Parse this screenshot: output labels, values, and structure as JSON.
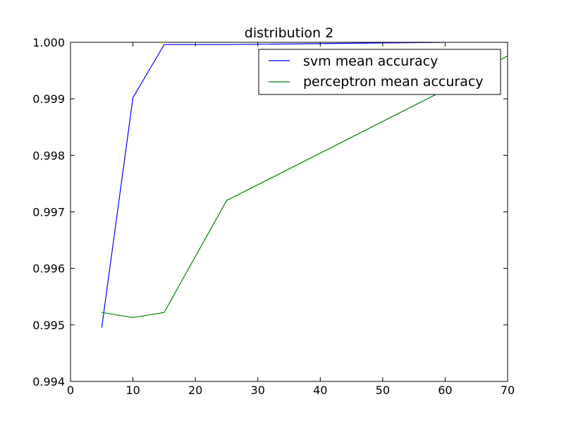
{
  "chart_data": {
    "type": "line",
    "title": "distribution 2",
    "xlabel": "",
    "ylabel": "",
    "xlim": [
      0,
      70
    ],
    "ylim": [
      0.994,
      1.0
    ],
    "xticks": [
      "0",
      "10",
      "20",
      "30",
      "40",
      "50",
      "60",
      "70"
    ],
    "yticks": [
      "0.994",
      "0.995",
      "0.996",
      "0.997",
      "0.998",
      "0.999",
      "1.000"
    ],
    "grid": false,
    "legend_position": "top-right",
    "series": [
      {
        "name": "svm mean accuracy",
        "color": "#0000ff",
        "x": [
          5,
          10,
          15,
          25,
          60
        ],
        "y": [
          0.99495,
          0.99902,
          0.99996,
          0.99996,
          1.0
        ]
      },
      {
        "name": "perceptron mean accuracy",
        "color": "#008000",
        "x": [
          5,
          10,
          15,
          25,
          60,
          70
        ],
        "y": [
          0.99522,
          0.99513,
          0.99522,
          0.9972,
          0.99916,
          0.99976
        ]
      }
    ]
  }
}
